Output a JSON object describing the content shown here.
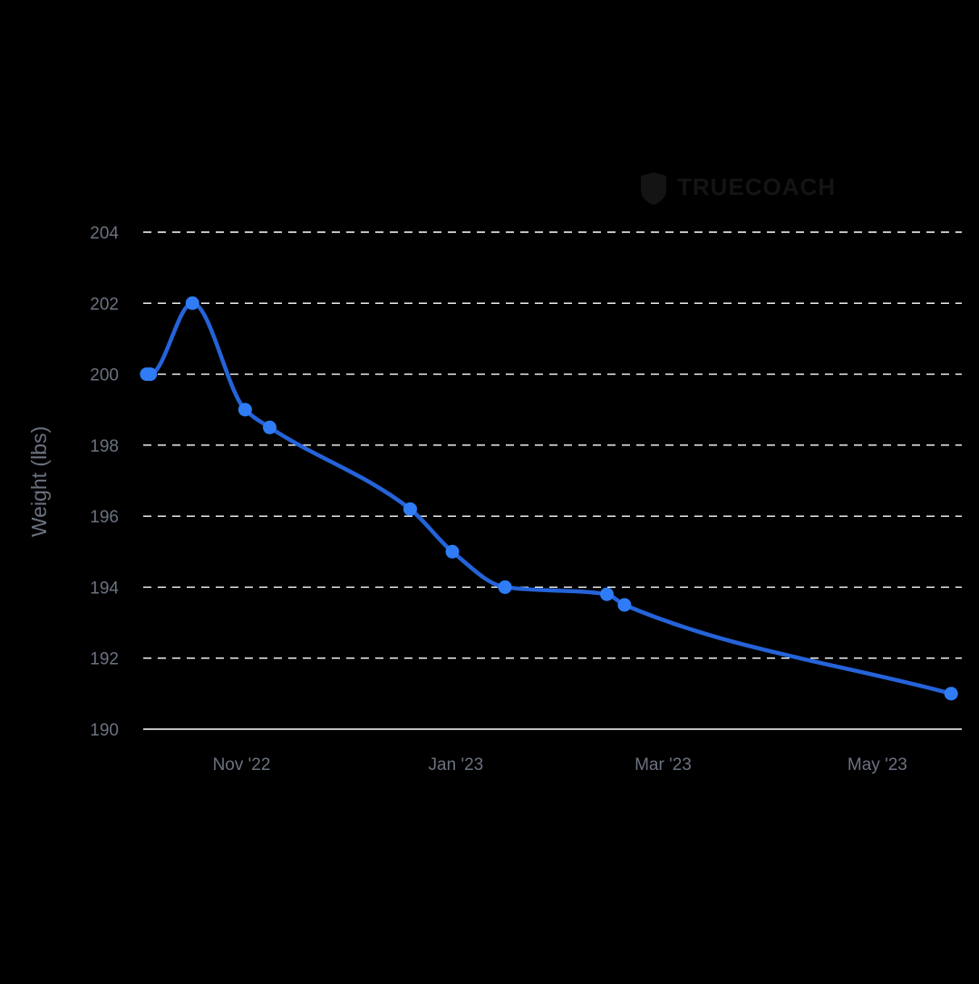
{
  "chart_data": {
    "type": "line",
    "title": "",
    "xlabel": "",
    "ylabel": "Weight (lbs)",
    "watermark": "TRUECOACH",
    "ylim": [
      190,
      204
    ],
    "yticks": [
      190,
      192,
      194,
      196,
      198,
      200,
      202,
      204
    ],
    "ytick_labels": [
      "190",
      "192",
      "194",
      "196",
      "198",
      "200",
      "202",
      "204"
    ],
    "xlim": [
      "2022-10-04",
      "2023-05-24"
    ],
    "xticks": [
      {
        "date": "2022-11-01",
        "label": "Nov '22"
      },
      {
        "date": "2023-01-01",
        "label": "Jan '23"
      },
      {
        "date": "2023-03-01",
        "label": "Mar '23"
      },
      {
        "date": "2023-05-01",
        "label": "May '23"
      }
    ],
    "grid": true,
    "line_color": "#2563d9",
    "marker_color": "#2f7cf6",
    "grid_color": "#ffffff",
    "series": [
      {
        "points": [
          {
            "x": "2022-10-05",
            "y": 200.0
          },
          {
            "x": "2022-10-06",
            "y": 200.0
          },
          {
            "x": "2022-10-18",
            "y": 202.0
          },
          {
            "x": "2022-11-02",
            "y": 199.0
          },
          {
            "x": "2022-11-09",
            "y": 198.5
          },
          {
            "x": "2022-12-19",
            "y": 196.2
          },
          {
            "x": "2022-12-31",
            "y": 195.0
          },
          {
            "x": "2023-01-15",
            "y": 194.0
          },
          {
            "x": "2023-02-13",
            "y": 193.8
          },
          {
            "x": "2023-02-18",
            "y": 193.5
          },
          {
            "x": "2023-05-22",
            "y": 191.0
          }
        ]
      }
    ]
  }
}
